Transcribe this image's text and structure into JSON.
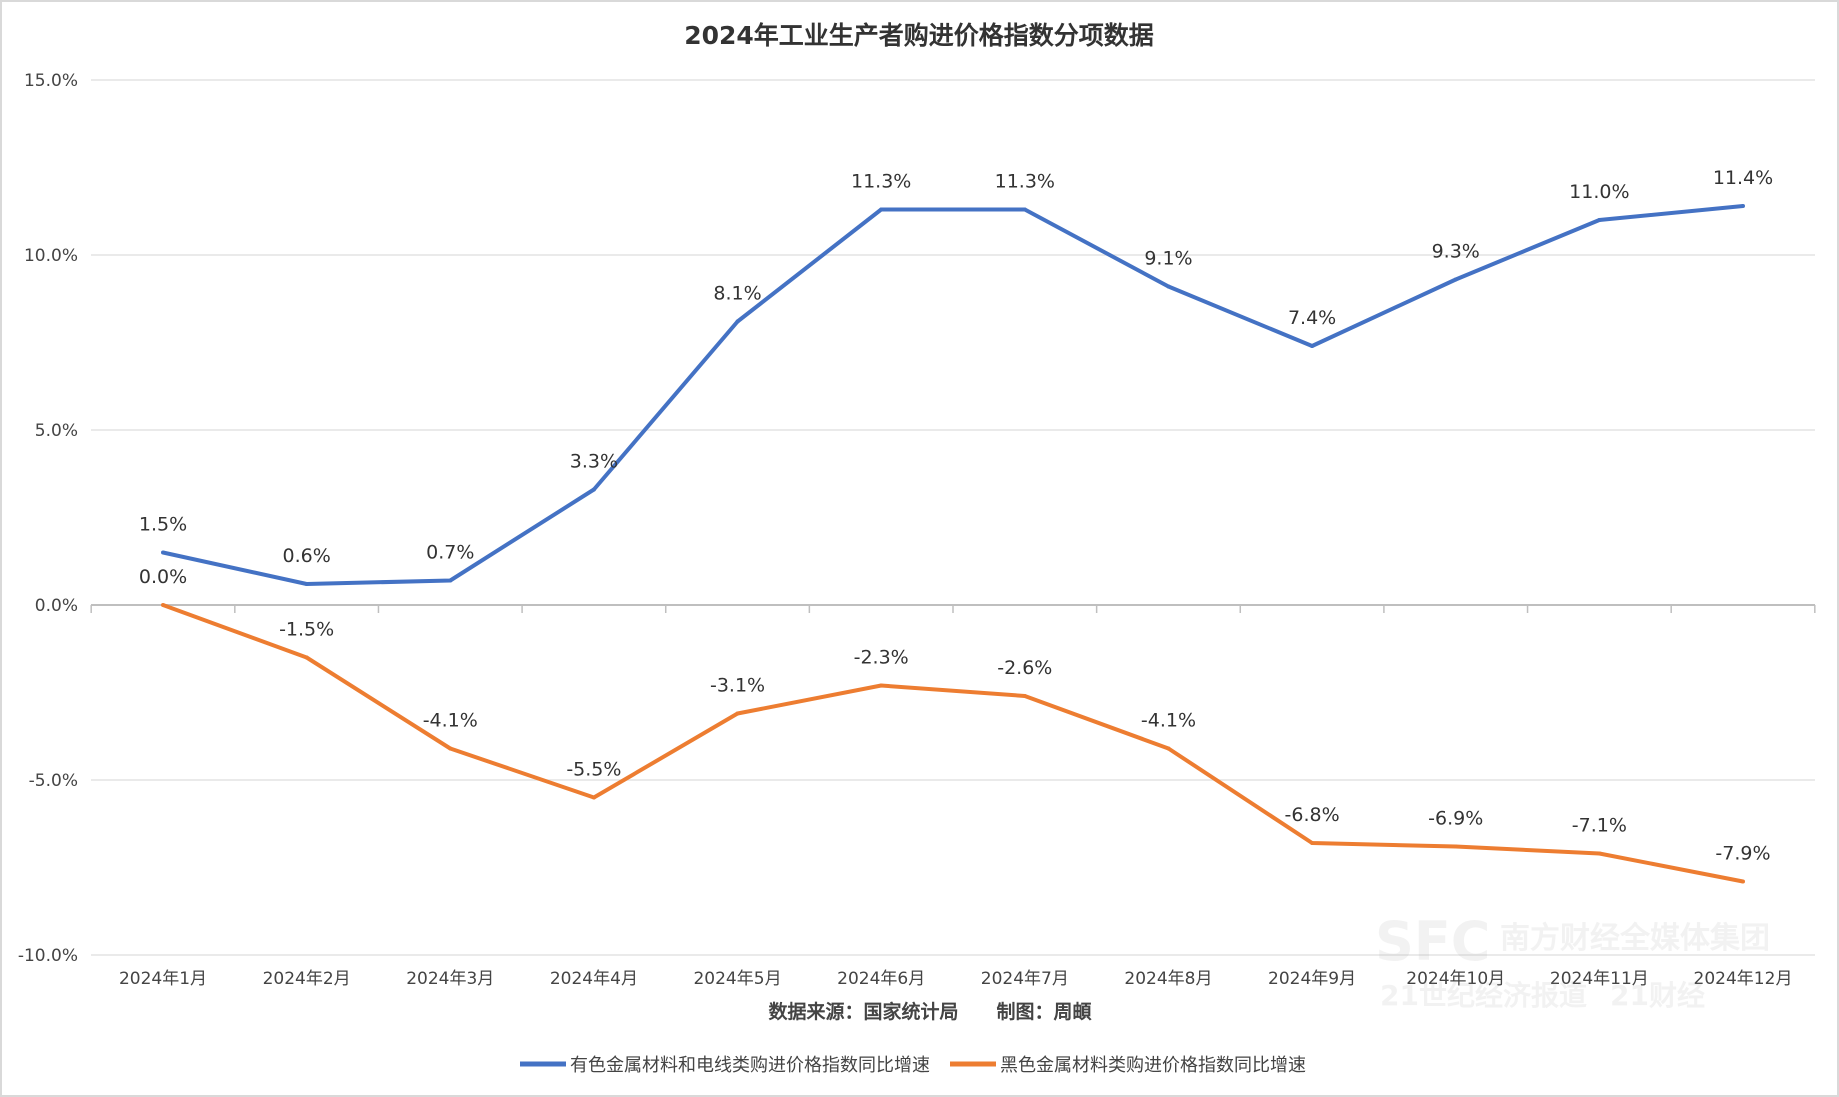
{
  "chart_data": {
    "type": "line",
    "title": "2024年工业生产者购进价格指数分项数据",
    "source_note": "数据来源：国家统计局　　制图：周頔",
    "categories": [
      "2024年1月",
      "2024年2月",
      "2024年3月",
      "2024年4月",
      "2024年5月",
      "2024年6月",
      "2024年7月",
      "2024年8月",
      "2024年9月",
      "2024年10月",
      "2024年11月",
      "2024年12月"
    ],
    "ylim": [
      -10,
      15
    ],
    "yticks": [
      -10,
      -5,
      0,
      5,
      10,
      15
    ],
    "ytick_labels": [
      "-10.0%",
      "-5.0%",
      "0.0%",
      "5.0%",
      "10.0%",
      "15.0%"
    ],
    "grid": true,
    "legend_position": "bottom",
    "series": [
      {
        "name": "有色金属材料和电线类购进价格指数同比增速",
        "color": "#4472c4",
        "values": [
          1.5,
          0.6,
          0.7,
          3.3,
          8.1,
          11.3,
          11.3,
          9.1,
          7.4,
          9.3,
          11.0,
          11.4
        ],
        "labels": [
          "1.5%",
          "0.6%",
          "0.7%",
          "3.3%",
          "8.1%",
          "11.3%",
          "11.3%",
          "9.1%",
          "7.4%",
          "9.3%",
          "11.0%",
          "11.4%"
        ]
      },
      {
        "name": "黑色金属材料类购进价格指数同比增速",
        "color": "#ed7d31",
        "values": [
          0.0,
          -1.5,
          -4.1,
          -5.5,
          -3.1,
          -2.3,
          -2.6,
          -4.1,
          -6.8,
          -6.9,
          -7.1,
          -7.9
        ],
        "labels": [
          "0.0%",
          "-1.5%",
          "-4.1%",
          "-5.5%",
          "-3.1%",
          "-2.3%",
          "-2.6%",
          "-4.1%",
          "-6.8%",
          "-6.9%",
          "-7.1%",
          "-7.9%"
        ]
      }
    ],
    "watermark": "SFC 南方财经全媒体集团 21世纪经济报道 21财经"
  }
}
